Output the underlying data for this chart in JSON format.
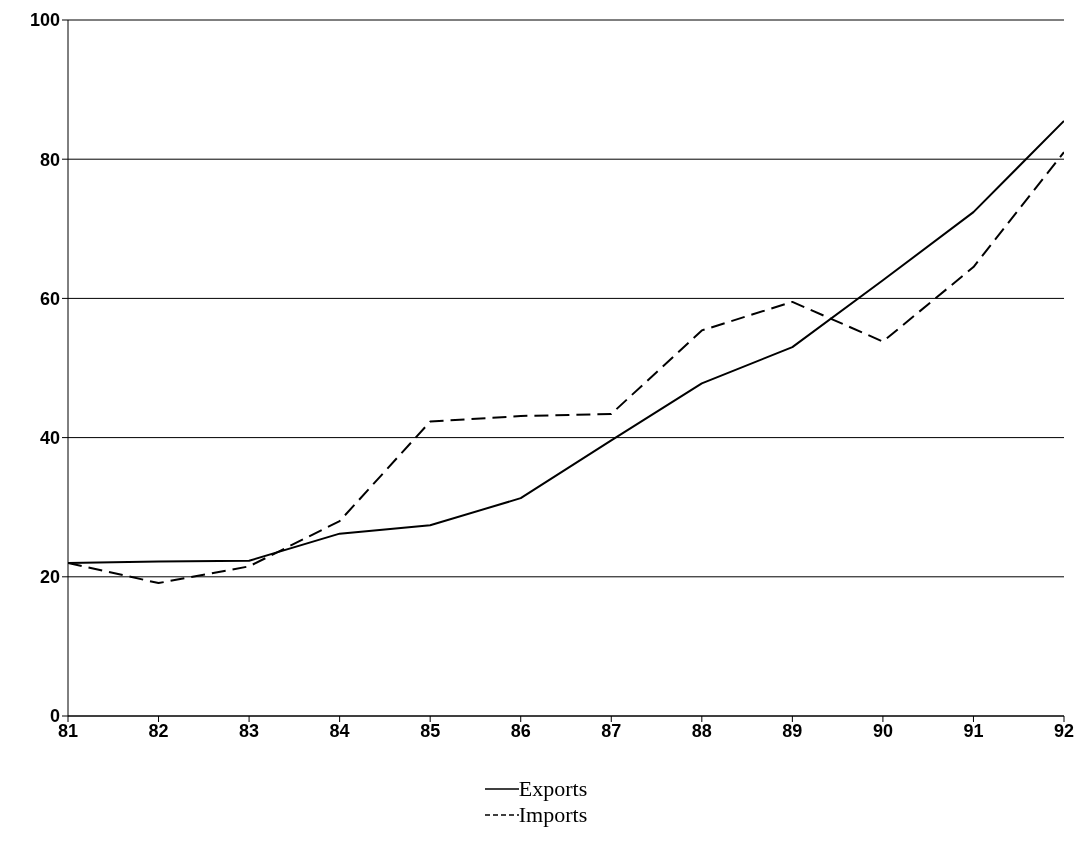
{
  "chart_data": {
    "type": "line",
    "x": [
      81,
      82,
      83,
      84,
      85,
      86,
      87,
      88,
      89,
      90,
      91,
      92
    ],
    "series": [
      {
        "name": "Exports",
        "color": "#000000",
        "line_style": "solid",
        "values": [
          22,
          22.2,
          22.3,
          26.2,
          27.4,
          31.3,
          39.6,
          47.8,
          53,
          62.6,
          72.4,
          85.5
        ]
      },
      {
        "name": "Imports",
        "color": "#000000",
        "line_style": "dashed",
        "values": [
          22,
          19.1,
          21.5,
          28,
          42.3,
          43.1,
          43.4,
          55.4,
          59.5,
          53.8,
          64.5,
          81
        ]
      }
    ],
    "xlim": [
      81,
      92
    ],
    "xticks": [
      81,
      82,
      83,
      84,
      85,
      86,
      87,
      88,
      89,
      90,
      91,
      92
    ],
    "ylim": [
      0,
      100
    ],
    "yticks": [
      0,
      20,
      40,
      60,
      80,
      100
    ],
    "grid": "y",
    "legend": "bottom",
    "marker": "none"
  }
}
